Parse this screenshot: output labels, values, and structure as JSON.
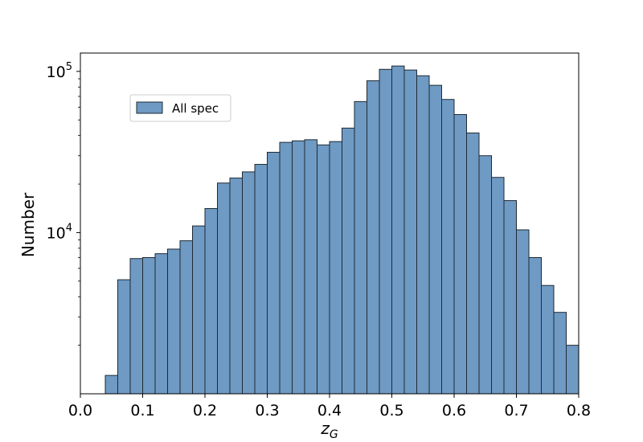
{
  "chart_data": {
    "type": "bar",
    "histogram": true,
    "x_bin_edges": [
      0.04,
      0.06,
      0.08,
      0.1,
      0.12,
      0.14,
      0.16,
      0.18,
      0.2,
      0.22,
      0.24,
      0.26,
      0.28,
      0.3,
      0.32,
      0.34,
      0.36,
      0.38,
      0.4,
      0.42,
      0.44,
      0.46,
      0.48,
      0.5,
      0.52,
      0.54,
      0.56,
      0.58,
      0.6,
      0.62,
      0.64,
      0.66,
      0.68,
      0.7,
      0.72,
      0.74,
      0.76,
      0.78,
      0.8
    ],
    "series": [
      {
        "name": "All spec",
        "color": "#6e9ac4",
        "edge_color": "#1f2a33",
        "values": [
          1300,
          5100,
          6900,
          7000,
          7400,
          7900,
          8900,
          11000,
          14100,
          20300,
          21800,
          23800,
          26500,
          31500,
          36300,
          37100,
          37700,
          35000,
          36700,
          44500,
          65000,
          87500,
          103000,
          108000,
          102000,
          94000,
          82000,
          67000,
          54000,
          41500,
          30000,
          22000,
          15800,
          10400,
          7000,
          4700,
          3200,
          2000
        ]
      }
    ],
    "xlabel_main": "z",
    "xlabel_sub": "G",
    "ylabel": "Number",
    "xlim": [
      0.0,
      0.8
    ],
    "ylim": [
      1000,
      130000
    ],
    "yscale": "log",
    "x_ticks": [
      "0.0",
      "0.1",
      "0.2",
      "0.3",
      "0.4",
      "0.5",
      "0.6",
      "0.7",
      "0.8"
    ],
    "y_ticks": [
      {
        "base": "10",
        "exp": "4",
        "value": 10000
      },
      {
        "base": "10",
        "exp": "5",
        "value": 100000
      }
    ],
    "grid": false,
    "legend_position": "upper-left"
  }
}
